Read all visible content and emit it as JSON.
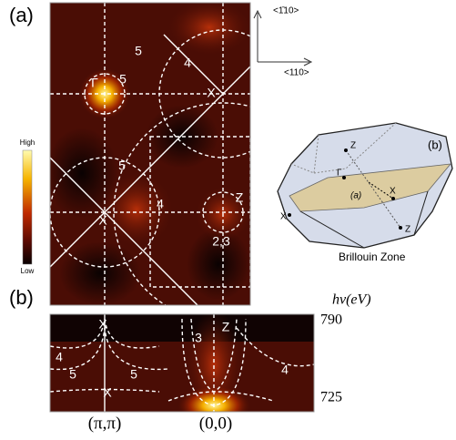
{
  "panel_a": {
    "label": "(a)",
    "colorbar": {
      "high": "High",
      "low": "Low"
    },
    "annotations": [
      "Γ",
      "5",
      "X",
      "4",
      "5",
      "5",
      "4",
      "X",
      "Z",
      "2,3"
    ]
  },
  "axes": {
    "vertical": "<1̄10>",
    "horizontal": "<110>"
  },
  "brillouin_zone": {
    "label": "(b)",
    "points": [
      "Z",
      "Γ",
      "X",
      "(a)",
      "X",
      "Z"
    ],
    "caption": "Brillouin Zone"
  },
  "panel_b": {
    "label": "(b)",
    "y_axis_label": "hν(eV)",
    "y_top": 790,
    "y_bottom": 725,
    "x_labels": [
      "(π,π)",
      "(0,0)"
    ],
    "annotations": [
      "X",
      "4",
      "5",
      "5",
      "3",
      "Z",
      "4",
      "X"
    ]
  }
}
